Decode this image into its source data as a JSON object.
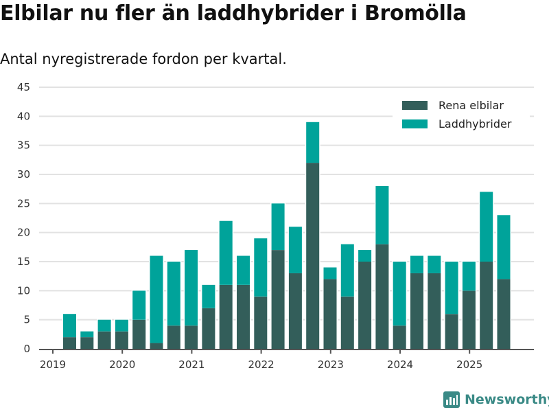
{
  "title": "Elbilar nu fler än laddhybrider i Bromölla",
  "subtitle": "Antal nyregistrerade fordon per kvartal.",
  "brand": "Newsworthy",
  "colors": {
    "elbil": "#335e5a",
    "laddhybrid": "#00a39a",
    "grid": "#e2e2e2",
    "axis": "#555555"
  },
  "chart_data": {
    "type": "bar",
    "stacked": true,
    "title": "Elbilar nu fler än laddhybrider i Bromölla",
    "ylabel": "",
    "xlabel": "",
    "ylim": [
      0,
      45
    ],
    "yticks": [
      "0",
      "5",
      "10",
      "15",
      "20",
      "25",
      "30",
      "35",
      "40",
      "45"
    ],
    "xticks": [
      "2019",
      "2020",
      "2021",
      "2022",
      "2023",
      "2024",
      "2025"
    ],
    "legend_position": "top-right",
    "categories": [
      "2019Q2",
      "2019Q3",
      "2019Q4",
      "2020Q1",
      "2020Q2",
      "2020Q3",
      "2020Q4",
      "2021Q1",
      "2021Q2",
      "2021Q3",
      "2021Q4",
      "2022Q1",
      "2022Q2",
      "2022Q3",
      "2022Q4",
      "2023Q1",
      "2023Q2",
      "2023Q3",
      "2023Q4",
      "2024Q1",
      "2024Q2",
      "2024Q3",
      "2024Q4",
      "2025Q1",
      "2025Q2",
      "2025Q3"
    ],
    "series": [
      {
        "name": "Rena elbilar",
        "values": [
          2,
          2,
          3,
          3,
          5,
          1,
          4,
          4,
          7,
          11,
          11,
          9,
          17,
          13,
          32,
          12,
          9,
          15,
          18,
          4,
          13,
          13,
          6,
          10,
          15,
          12
        ]
      },
      {
        "name": "Laddhybrider",
        "values": [
          4,
          1,
          2,
          2,
          5,
          15,
          11,
          13,
          4,
          11,
          5,
          10,
          8,
          8,
          7,
          2,
          9,
          2,
          10,
          11,
          3,
          3,
          9,
          5,
          12,
          11
        ]
      }
    ]
  }
}
